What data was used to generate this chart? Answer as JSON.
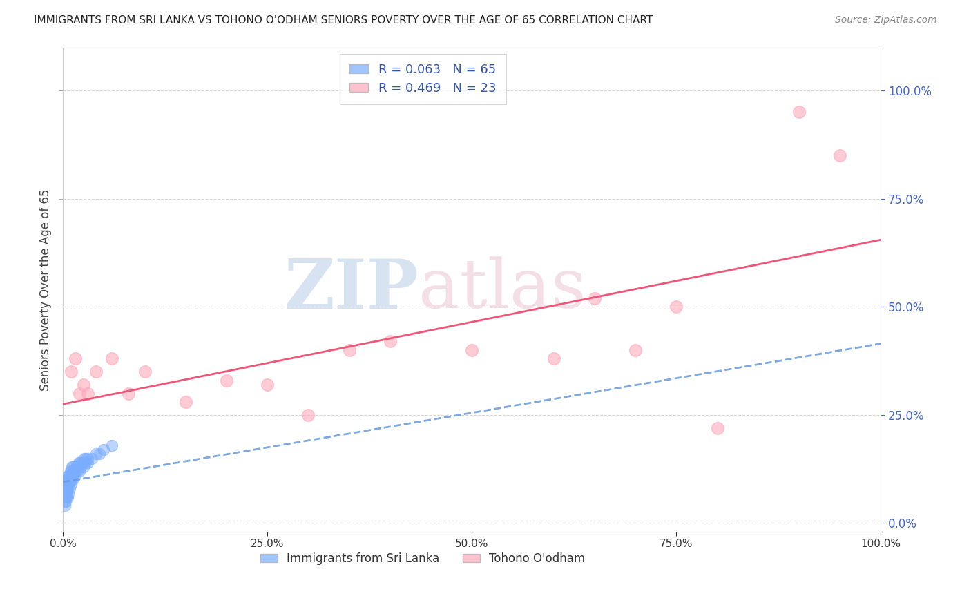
{
  "title": "IMMIGRANTS FROM SRI LANKA VS TOHONO O'ODHAM SENIORS POVERTY OVER THE AGE OF 65 CORRELATION CHART",
  "source": "Source: ZipAtlas.com",
  "ylabel": "Seniors Poverty Over the Age of 65",
  "watermark_zip": "ZIP",
  "watermark_atlas": "atlas",
  "xlim": [
    0.0,
    1.0
  ],
  "ylim": [
    -0.02,
    1.1
  ],
  "x_ticks": [
    0.0,
    0.25,
    0.5,
    0.75,
    1.0
  ],
  "x_tick_labels": [
    "0.0%",
    "25.0%",
    "50.0%",
    "75.0%",
    "100.0%"
  ],
  "y_ticks": [
    0.0,
    0.25,
    0.5,
    0.75,
    1.0
  ],
  "y_tick_labels_right": [
    "0.0%",
    "25.0%",
    "50.0%",
    "75.0%",
    "100.0%"
  ],
  "sri_lanka_R": 0.063,
  "sri_lanka_N": 65,
  "tohono_R": 0.469,
  "tohono_N": 23,
  "sri_lanka_color": "#7aadff",
  "tohono_color": "#ffaabc",
  "sri_lanka_trend_color": "#6699dd",
  "tohono_trend_color": "#ee5577",
  "legend_label_sri": "Immigrants from Sri Lanka",
  "legend_label_tohono": "Tohono O'odham",
  "sri_lanka_trend_intercept": 0.095,
  "sri_lanka_trend_slope": 0.32,
  "tohono_trend_intercept": 0.275,
  "tohono_trend_slope": 0.38,
  "sri_lanka_x": [
    0.002,
    0.002,
    0.002,
    0.003,
    0.003,
    0.003,
    0.003,
    0.003,
    0.004,
    0.004,
    0.004,
    0.004,
    0.005,
    0.005,
    0.005,
    0.006,
    0.006,
    0.006,
    0.007,
    0.007,
    0.007,
    0.008,
    0.008,
    0.009,
    0.009,
    0.01,
    0.01,
    0.011,
    0.011,
    0.012,
    0.012,
    0.013,
    0.014,
    0.015,
    0.016,
    0.017,
    0.018,
    0.019,
    0.02,
    0.022,
    0.024,
    0.026,
    0.028,
    0.03,
    0.002,
    0.003,
    0.004,
    0.005,
    0.006,
    0.007,
    0.008,
    0.01,
    0.012,
    0.015,
    0.018,
    0.02,
    0.022,
    0.025,
    0.028,
    0.03,
    0.035,
    0.04,
    0.045,
    0.05,
    0.06
  ],
  "sri_lanka_y": [
    0.05,
    0.06,
    0.08,
    0.06,
    0.07,
    0.08,
    0.09,
    0.1,
    0.07,
    0.08,
    0.09,
    0.1,
    0.08,
    0.09,
    0.1,
    0.09,
    0.1,
    0.11,
    0.09,
    0.1,
    0.11,
    0.1,
    0.11,
    0.1,
    0.12,
    0.1,
    0.12,
    0.11,
    0.13,
    0.11,
    0.13,
    0.12,
    0.12,
    0.12,
    0.13,
    0.13,
    0.13,
    0.14,
    0.14,
    0.14,
    0.14,
    0.15,
    0.15,
    0.15,
    0.04,
    0.05,
    0.06,
    0.07,
    0.06,
    0.07,
    0.08,
    0.09,
    0.1,
    0.11,
    0.12,
    0.12,
    0.13,
    0.13,
    0.14,
    0.14,
    0.15,
    0.16,
    0.16,
    0.17,
    0.18
  ],
  "tohono_x": [
    0.01,
    0.015,
    0.02,
    0.025,
    0.03,
    0.04,
    0.06,
    0.08,
    0.1,
    0.15,
    0.2,
    0.25,
    0.3,
    0.35,
    0.4,
    0.5,
    0.6,
    0.65,
    0.7,
    0.75,
    0.8,
    0.9,
    0.95
  ],
  "tohono_y": [
    0.35,
    0.38,
    0.3,
    0.32,
    0.3,
    0.35,
    0.38,
    0.3,
    0.35,
    0.28,
    0.33,
    0.32,
    0.25,
    0.4,
    0.42,
    0.4,
    0.38,
    0.52,
    0.4,
    0.5,
    0.22,
    0.95,
    0.85
  ],
  "background_color": "#ffffff",
  "grid_color": "#cccccc",
  "title_color": "#222222",
  "axis_label_color": "#444444"
}
